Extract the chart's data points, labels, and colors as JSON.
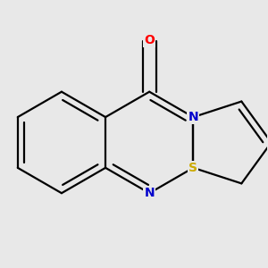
{
  "background_color": "#e8e8e8",
  "bond_color": "#000000",
  "atom_colors": {
    "O": "#ff0000",
    "N": "#0000cc",
    "S": "#ccaa00",
    "C": "#000000"
  },
  "bond_width": 1.6,
  "dbo": 0.055,
  "font_size": 10
}
